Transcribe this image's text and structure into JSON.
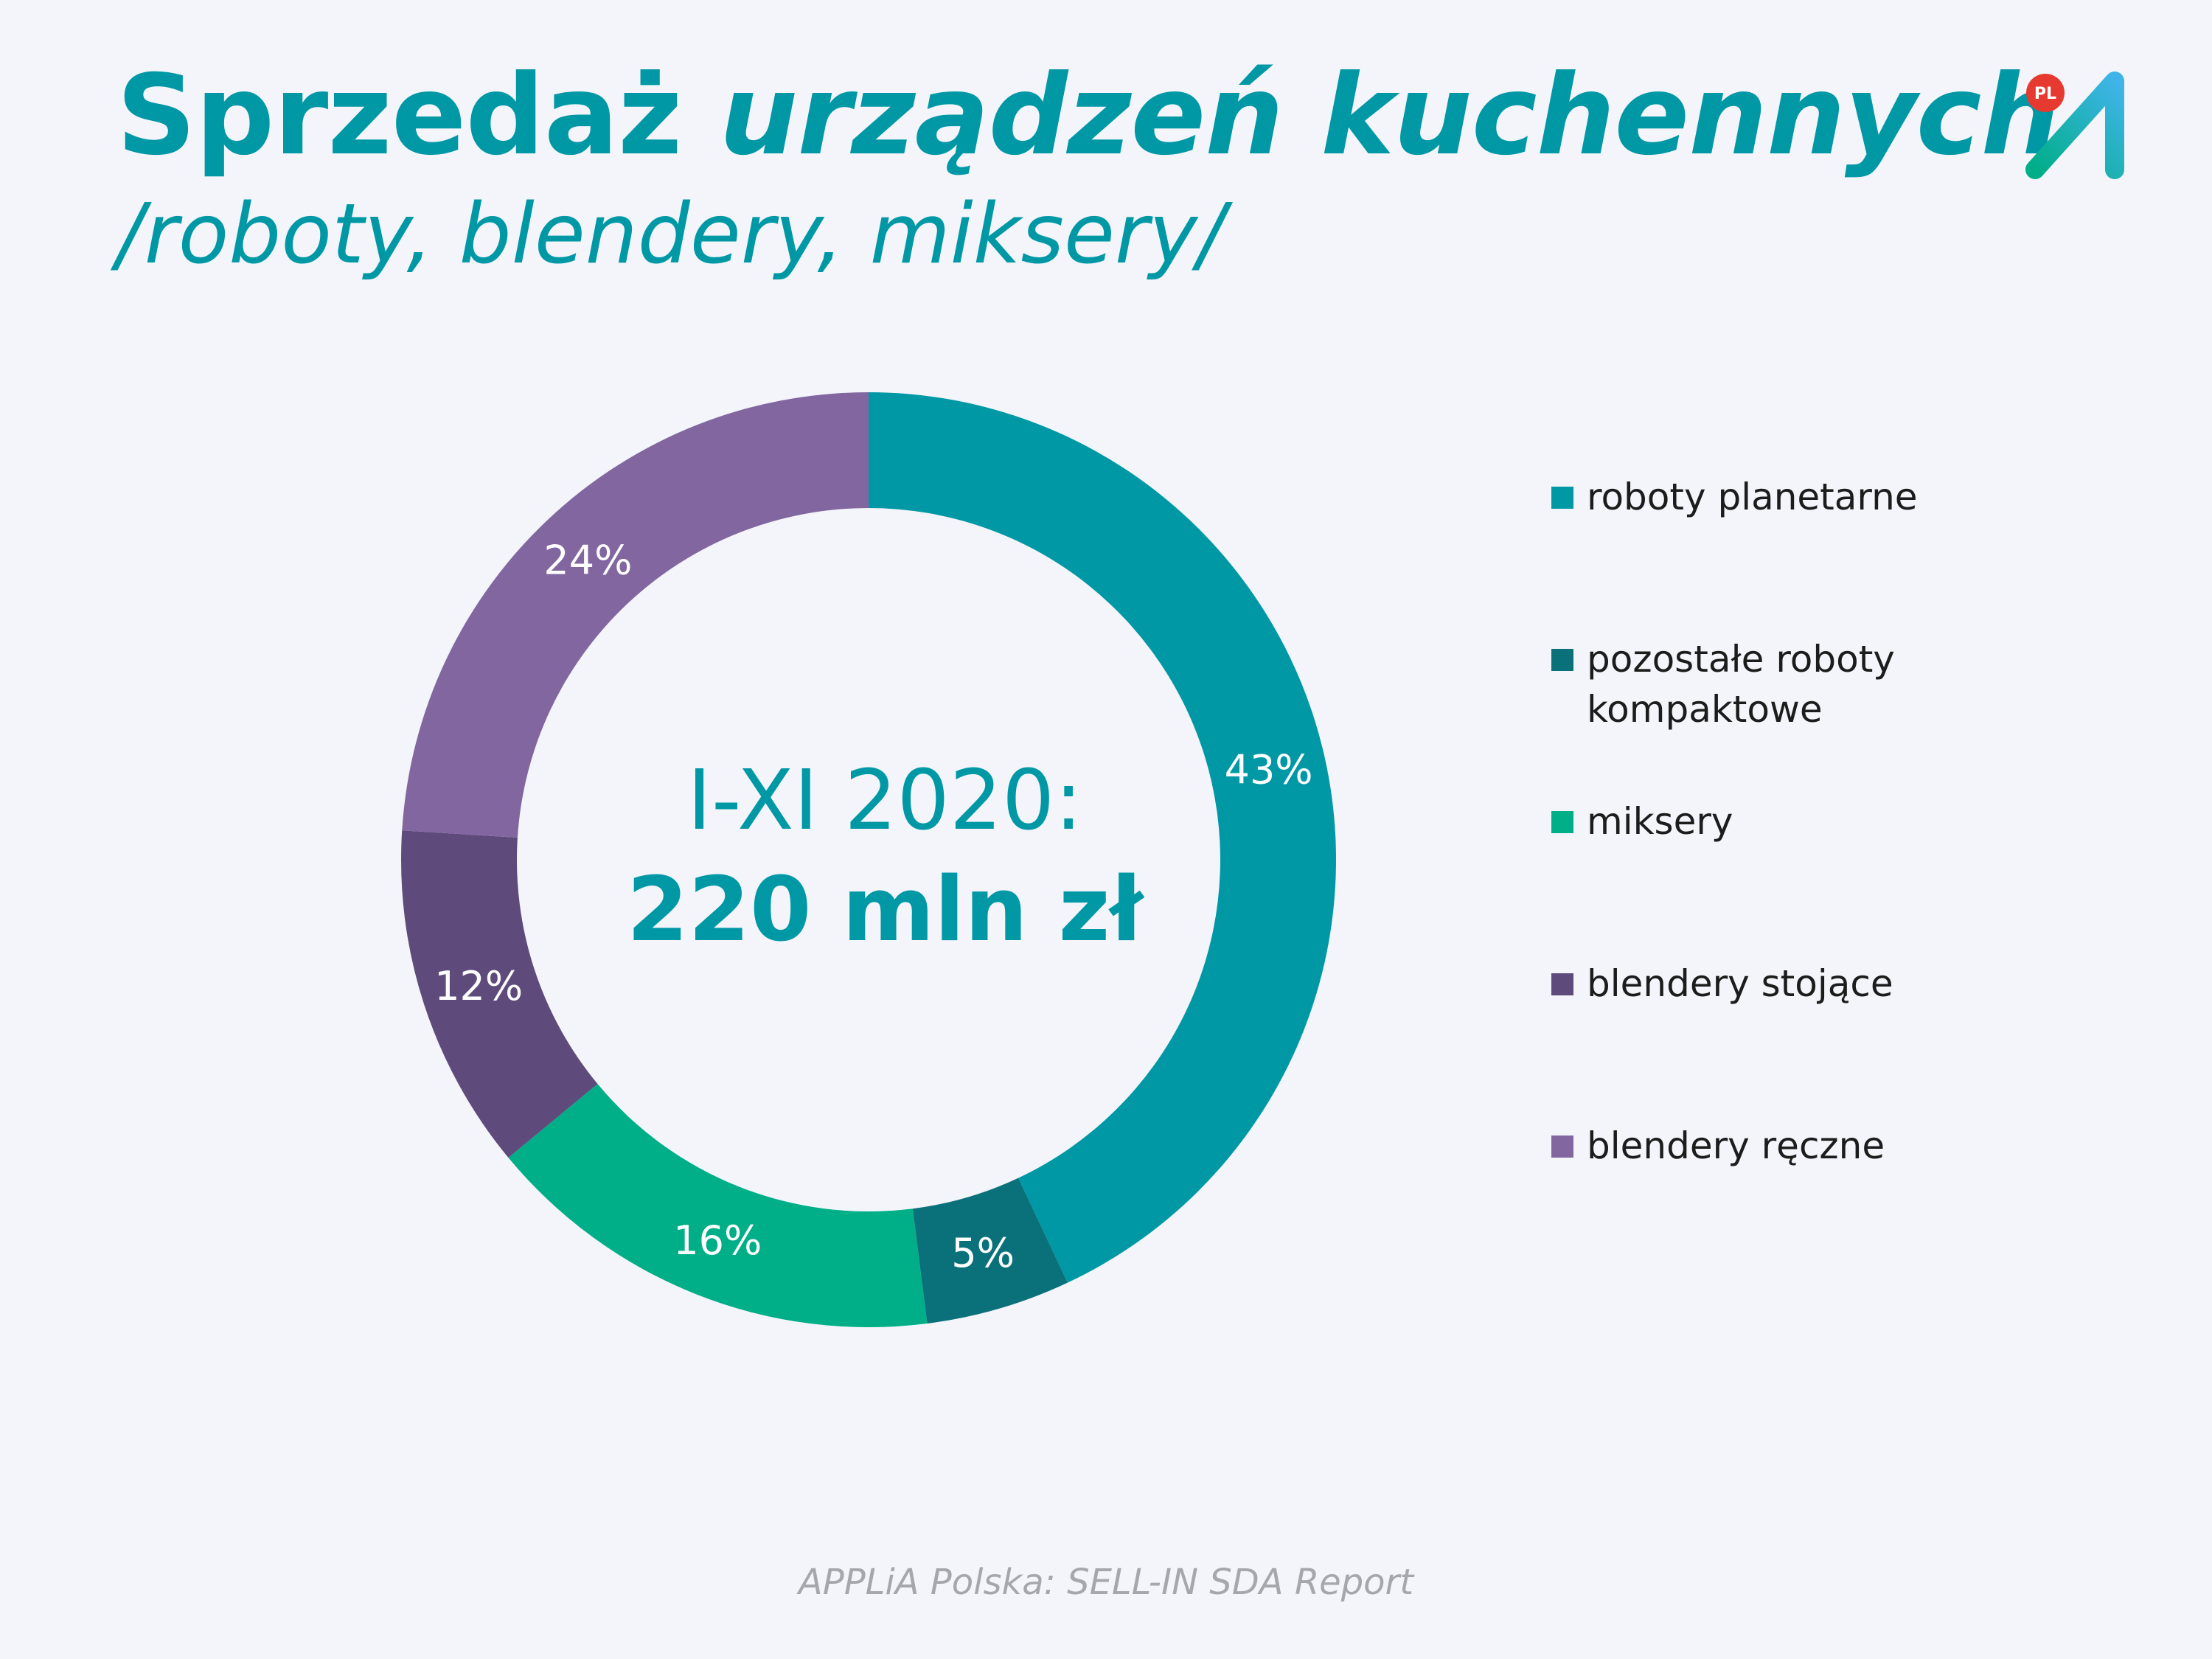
{
  "header": {
    "title_part1": "Sprzedaż ",
    "title_part2": "urządzeń kuchennych",
    "subtitle": "/roboty, blendery, miksery/",
    "logo_badge": "PL"
  },
  "center": {
    "period": "I-XI 2020:",
    "total": "220 mln zł"
  },
  "chart_data": {
    "type": "pie",
    "variant": "donut",
    "categories": [
      "roboty planetarne",
      "pozostałe roboty kompaktowe",
      "miksery",
      "blendery stojące",
      "blendery ręczne"
    ],
    "values": [
      43,
      5,
      16,
      12,
      24
    ],
    "value_labels": [
      "43%",
      "5%",
      "16%",
      "12%",
      "24%"
    ],
    "colors": [
      "#0198a6",
      "#0a717b",
      "#00ae88",
      "#5f4b7b",
      "#8166a0"
    ],
    "start_angle": "12 o'clock",
    "direction": "clockwise",
    "legend_position": "right"
  },
  "source": "APPLiA Polska: SELL-IN SDA Report"
}
